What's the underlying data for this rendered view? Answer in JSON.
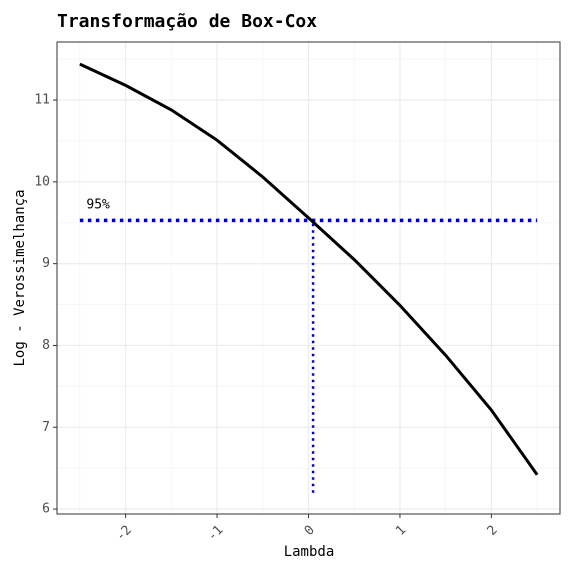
{
  "chart_data": {
    "type": "line",
    "title": "Transformação de Box-Cox",
    "x_label": "Lambda",
    "y_label": "Log - Verossimelhança",
    "x": [
      -2.5,
      -2,
      -1.5,
      -1,
      -0.5,
      0,
      0.5,
      1,
      1.5,
      2,
      2.5
    ],
    "series": [
      {
        "color": "#000000",
        "values": [
          11.44,
          11.18,
          10.88,
          10.51,
          10.06,
          9.56,
          9.05,
          8.49,
          7.88,
          7.21,
          6.42
        ]
      }
    ],
    "hline": 9.53,
    "vline": 0.05,
    "vline_ymin": 6.2,
    "ref_color": "#0000cc",
    "annotation": {
      "text": "95%",
      "x": -2.3,
      "y": 9.72
    },
    "xlim": [
      -2.75,
      2.75
    ],
    "xticks": [
      -2,
      -1,
      0,
      1,
      2
    ],
    "ylim": [
      5.94,
      11.71
    ],
    "yticks": [
      6,
      7,
      8,
      9,
      10,
      11
    ],
    "grid": true
  }
}
